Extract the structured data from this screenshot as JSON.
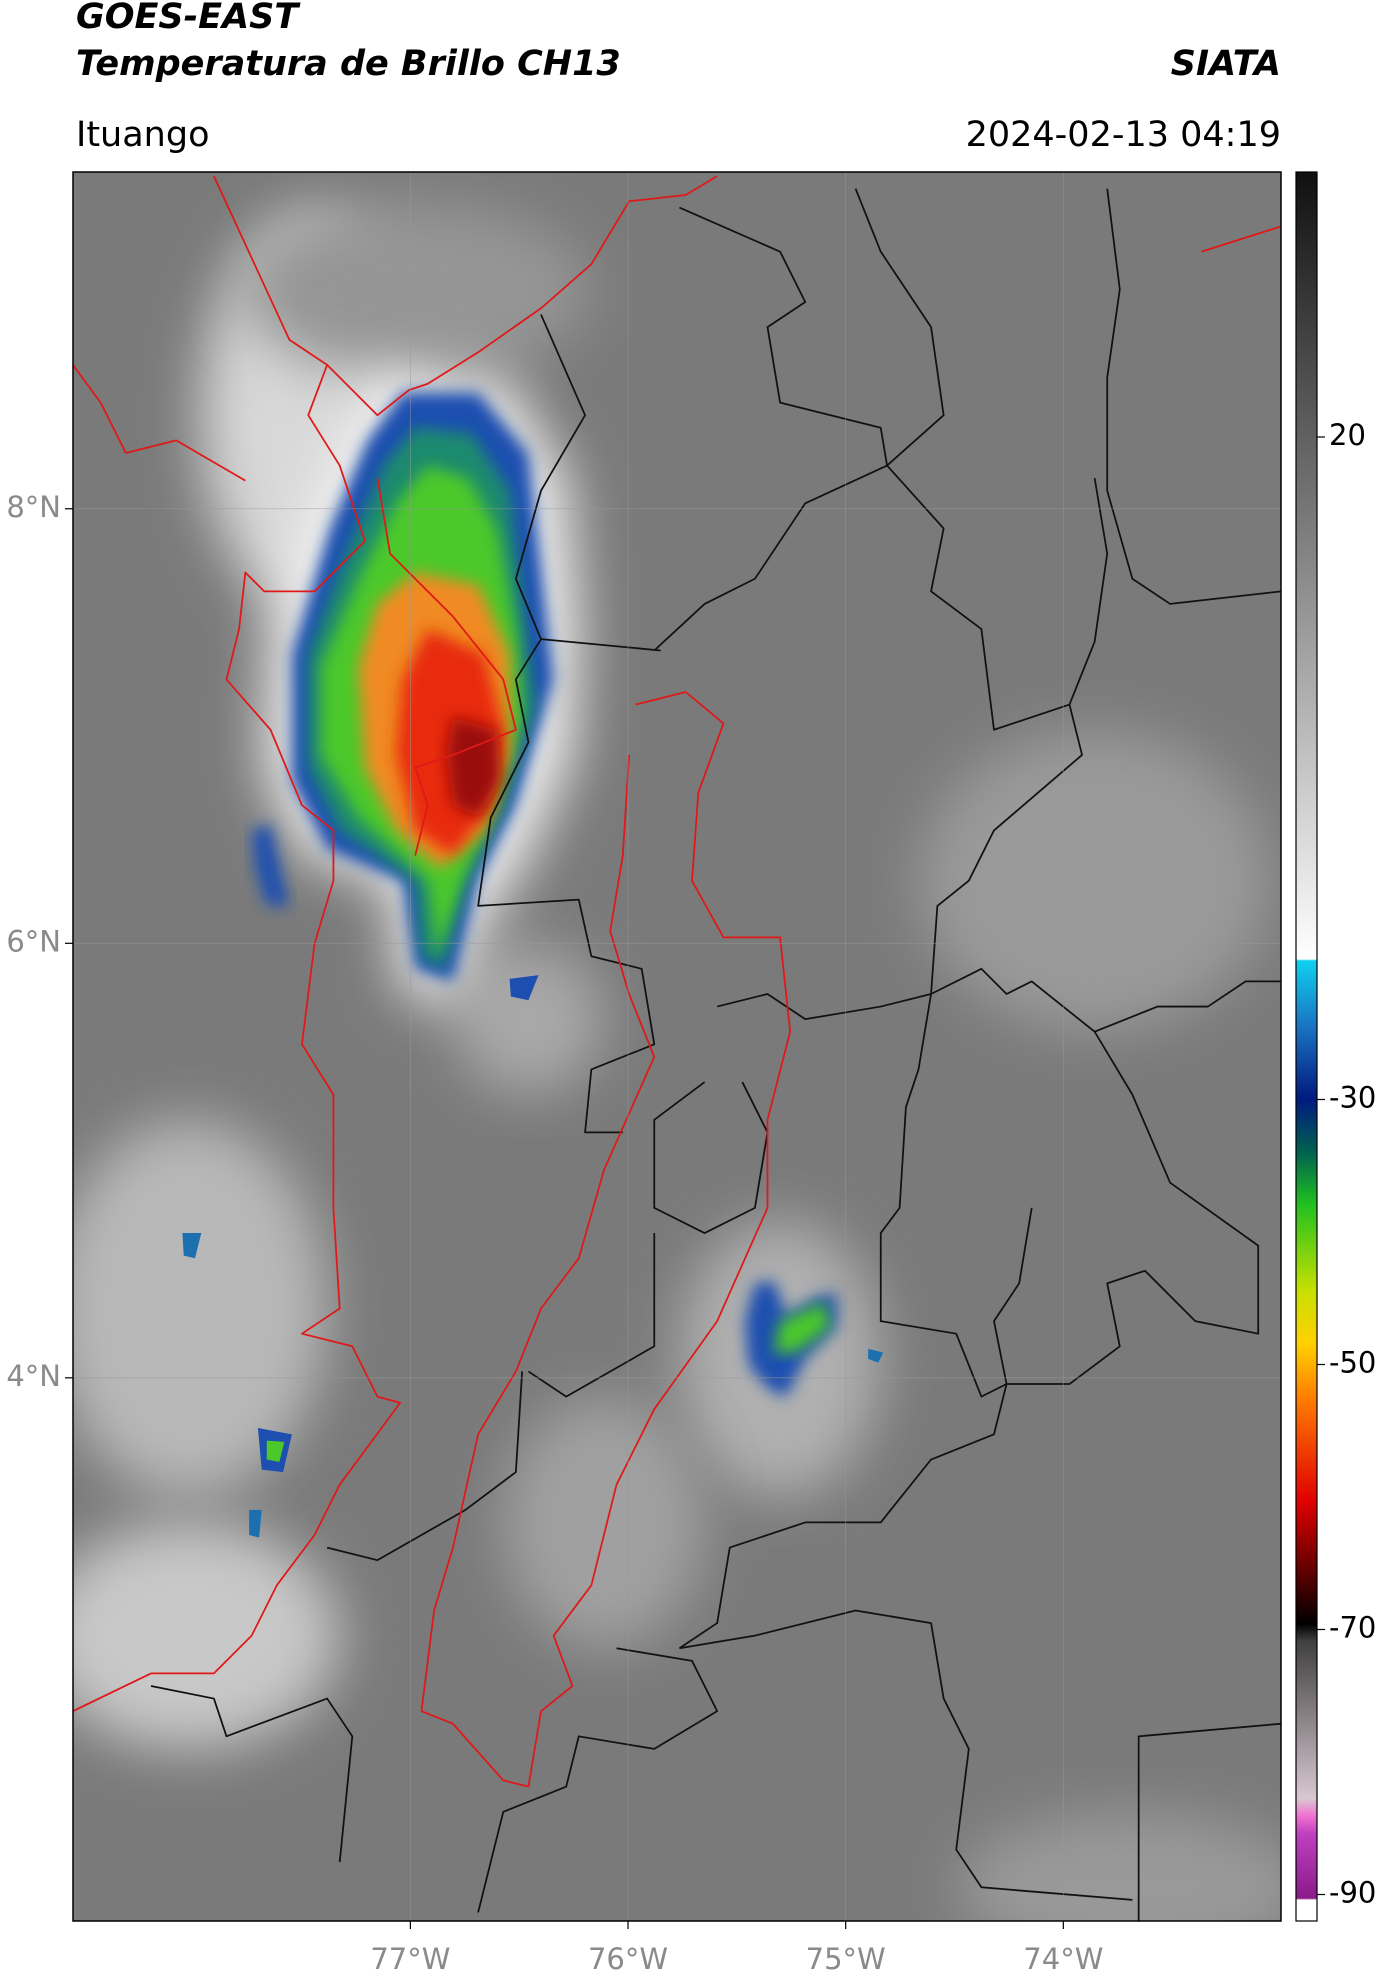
{
  "header": {
    "title": "GOES-EAST",
    "subtitle": "Temperatura de Brillo CH13",
    "brand": "SIATA",
    "location": "Ituango",
    "datetime": "2024-02-13 04:19"
  },
  "map": {
    "xlim": [
      -78.55,
      -73.0
    ],
    "ylim": [
      1.5,
      9.55
    ],
    "xticks": [
      {
        "value": -77,
        "label": "77°W"
      },
      {
        "value": -76,
        "label": "76°W"
      },
      {
        "value": -75,
        "label": "75°W"
      },
      {
        "value": -74,
        "label": "74°W"
      }
    ],
    "yticks": [
      {
        "value": 8,
        "label": "8°N"
      },
      {
        "value": 6,
        "label": "6°N"
      },
      {
        "value": 4,
        "label": "4°N"
      }
    ],
    "grid": true
  },
  "colorbar": {
    "range": [
      -92,
      40
    ],
    "ticks": [
      20,
      -30,
      -50,
      -70,
      -90
    ]
  }
}
